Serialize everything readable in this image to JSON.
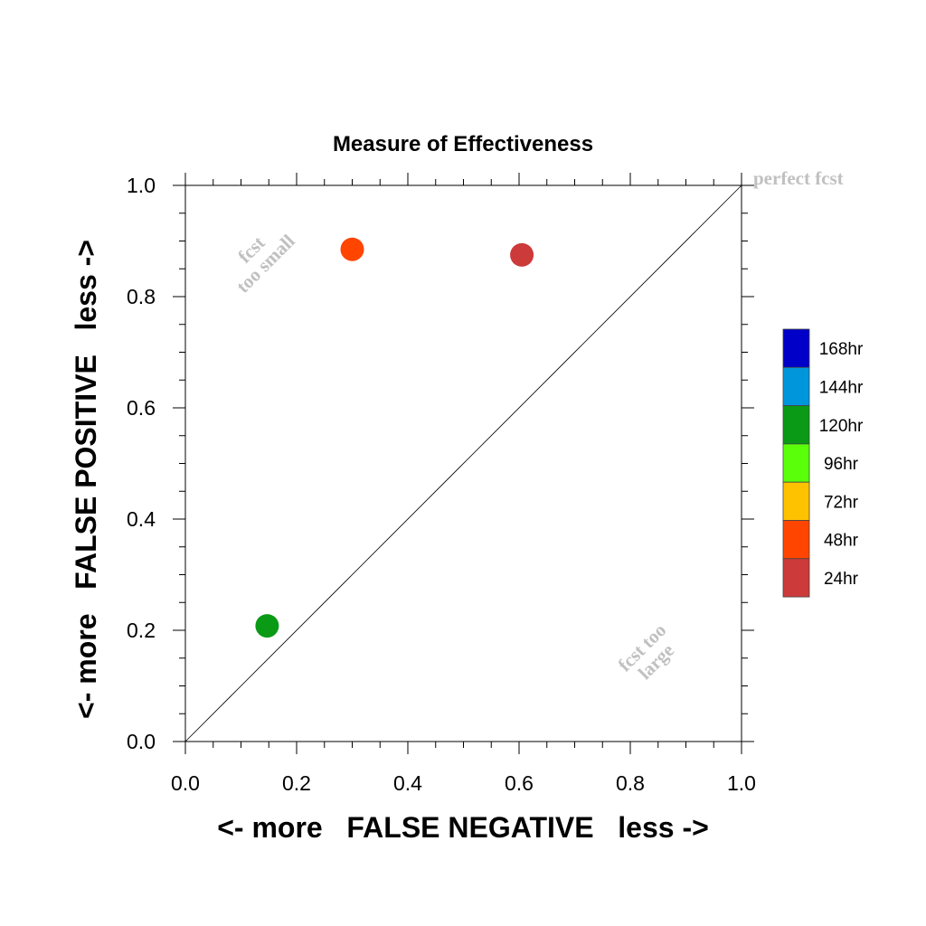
{
  "chart_data": {
    "type": "scatter",
    "title": "Measure of Effectiveness",
    "xlabel": "<- more   FALSE NEGATIVE   less ->",
    "ylabel": "<- more   FALSE POSITIVE   less ->",
    "xlim": [
      0.0,
      1.0
    ],
    "ylim": [
      0.0,
      1.0
    ],
    "xticks": [
      "0.0",
      "0.2",
      "0.4",
      "0.6",
      "0.8",
      "1.0"
    ],
    "yticks": [
      "0.0",
      "0.2",
      "0.4",
      "0.6",
      "0.8",
      "1.0"
    ],
    "grid": false,
    "diagonal_line": true,
    "points": [
      {
        "x": 0.3,
        "y": 0.885,
        "label": "48hr",
        "color": "#ff4500"
      },
      {
        "x": 0.605,
        "y": 0.875,
        "label": "24hr",
        "color": "#cc3a3a"
      },
      {
        "x": 0.147,
        "y": 0.208,
        "label": "120hr",
        "color": "#0a9a16"
      }
    ],
    "annotations": {
      "perfect": "perfect fcst",
      "too_small_1": "fcst",
      "too_small_2": "too small",
      "too_large_1": "fcst too",
      "too_large_2": "large"
    },
    "legend": {
      "placement": "right",
      "entries": [
        {
          "label": "168hr",
          "color": "#0000c8"
        },
        {
          "label": "144hr",
          "color": "#0096dc"
        },
        {
          "label": "120hr",
          "color": "#0a9a16"
        },
        {
          "label": "96hr",
          "color": "#5aff0a"
        },
        {
          "label": "72hr",
          "color": "#ffc200"
        },
        {
          "label": "48hr",
          "color": "#ff4500"
        },
        {
          "label": "24hr",
          "color": "#cc3a3a"
        }
      ]
    }
  }
}
